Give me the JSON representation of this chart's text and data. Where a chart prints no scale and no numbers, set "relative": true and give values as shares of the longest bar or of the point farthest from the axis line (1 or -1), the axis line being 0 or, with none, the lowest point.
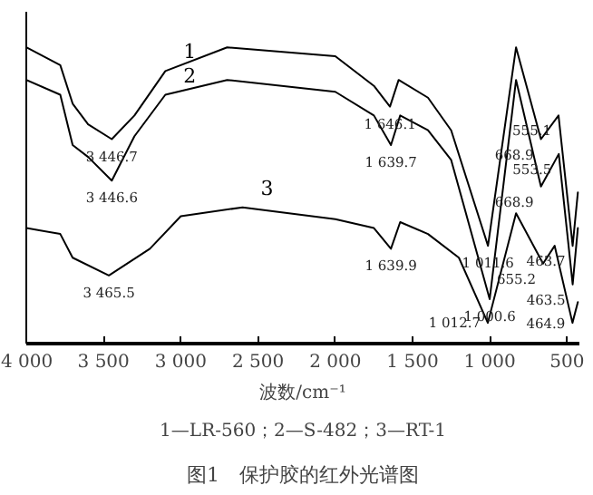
{
  "chart_data": {
    "type": "line",
    "title": "图1　保护胶的红外光谱图",
    "xlabel": "波数/cm⁻¹",
    "relative": true,
    "tick_labels": "x",
    "grid": false,
    "marker": "none",
    "line_style": "solid",
    "xlim": [
      4000,
      420
    ],
    "xticks": [
      {
        "value": 4000,
        "label": "4 000"
      },
      {
        "value": 3500,
        "label": "3 500"
      },
      {
        "value": 3000,
        "label": "3 000"
      },
      {
        "value": 2500,
        "label": "2 500"
      },
      {
        "value": 2000,
        "label": "2 000"
      },
      {
        "value": 1500,
        "label": "1 500"
      },
      {
        "value": 1000,
        "label": "1 000"
      },
      {
        "value": 500,
        "label": "500"
      }
    ],
    "series": [
      {
        "name": "1",
        "color": "#000000",
        "x": [
          4000,
          3780,
          3700,
          3600,
          3446.7,
          3300,
          3100,
          2700,
          2000,
          1750,
          1646.1,
          1590,
          1400,
          1250,
          1011.6,
          830,
          668.9,
          555.1,
          463.7,
          430
        ],
        "values": [
          1.0,
          0.94,
          0.81,
          0.74,
          0.69,
          0.77,
          0.92,
          1.0,
          0.97,
          0.87,
          0.8,
          0.89,
          0.83,
          0.72,
          0.33,
          1.0,
          0.69,
          0.77,
          0.33,
          0.51
        ]
      },
      {
        "name": "2",
        "color": "#000000",
        "x": [
          4000,
          3780,
          3700,
          3600,
          3446.6,
          3300,
          3100,
          2700,
          2000,
          1750,
          1639.7,
          1580,
          1400,
          1250,
          1000.6,
          830,
          668.9,
          553.5,
          463.5,
          430
        ],
        "values": [
          0.89,
          0.84,
          0.67,
          0.63,
          0.55,
          0.7,
          0.84,
          0.89,
          0.85,
          0.77,
          0.67,
          0.77,
          0.72,
          0.62,
          0.15,
          0.89,
          0.53,
          0.64,
          0.2,
          0.39
        ]
      },
      {
        "name": "3",
        "color": "#000000",
        "x": [
          4000,
          3780,
          3700,
          3465.5,
          3200,
          3000,
          2600,
          2000,
          1750,
          1639.9,
          1580,
          1400,
          1200,
          1012.7,
          830,
          655.2,
          580,
          464.9,
          430
        ],
        "values": [
          0.39,
          0.37,
          0.29,
          0.23,
          0.32,
          0.43,
          0.46,
          0.42,
          0.39,
          0.32,
          0.41,
          0.37,
          0.29,
          0.07,
          0.44,
          0.27,
          0.33,
          0.07,
          0.14
        ]
      }
    ],
    "annotations": [
      {
        "text": "3 446.7",
        "x": 3446.7,
        "y": 0.69
      },
      {
        "text": "3 446.6",
        "x": 3446.6,
        "y": 0.55
      },
      {
        "text": "3 465.5",
        "x": 3465.5,
        "y": 0.23
      },
      {
        "text": "1 646.1",
        "x": 1646.1,
        "y": 0.8
      },
      {
        "text": "1 639.7",
        "x": 1639.7,
        "y": 0.67
      },
      {
        "text": "1 639.9",
        "x": 1639.9,
        "y": 0.32
      },
      {
        "text": "1 011.6",
        "x": 1011.6,
        "y": 0.33
      },
      {
        "text": "1 000.6",
        "x": 1000.6,
        "y": 0.15
      },
      {
        "text": "1 012.7",
        "x": 1012.7,
        "y": 0.07
      },
      {
        "text": "668.9",
        "x": 668.9,
        "y": 0.69
      },
      {
        "text": "668.9",
        "x": 668.9,
        "y": 0.53
      },
      {
        "text": "655.2",
        "x": 655.2,
        "y": 0.27
      },
      {
        "text": "555.1",
        "x": 555.1,
        "y": 0.77
      },
      {
        "text": "553.5",
        "x": 553.5,
        "y": 0.64
      },
      {
        "text": "463.7",
        "x": 463.7,
        "y": 0.33
      },
      {
        "text": "463.5",
        "x": 463.5,
        "y": 0.2
      },
      {
        "text": "464.9",
        "x": 464.9,
        "y": 0.07
      },
      "1—LR-560；2—S-482；3—RT-1"
    ]
  }
}
